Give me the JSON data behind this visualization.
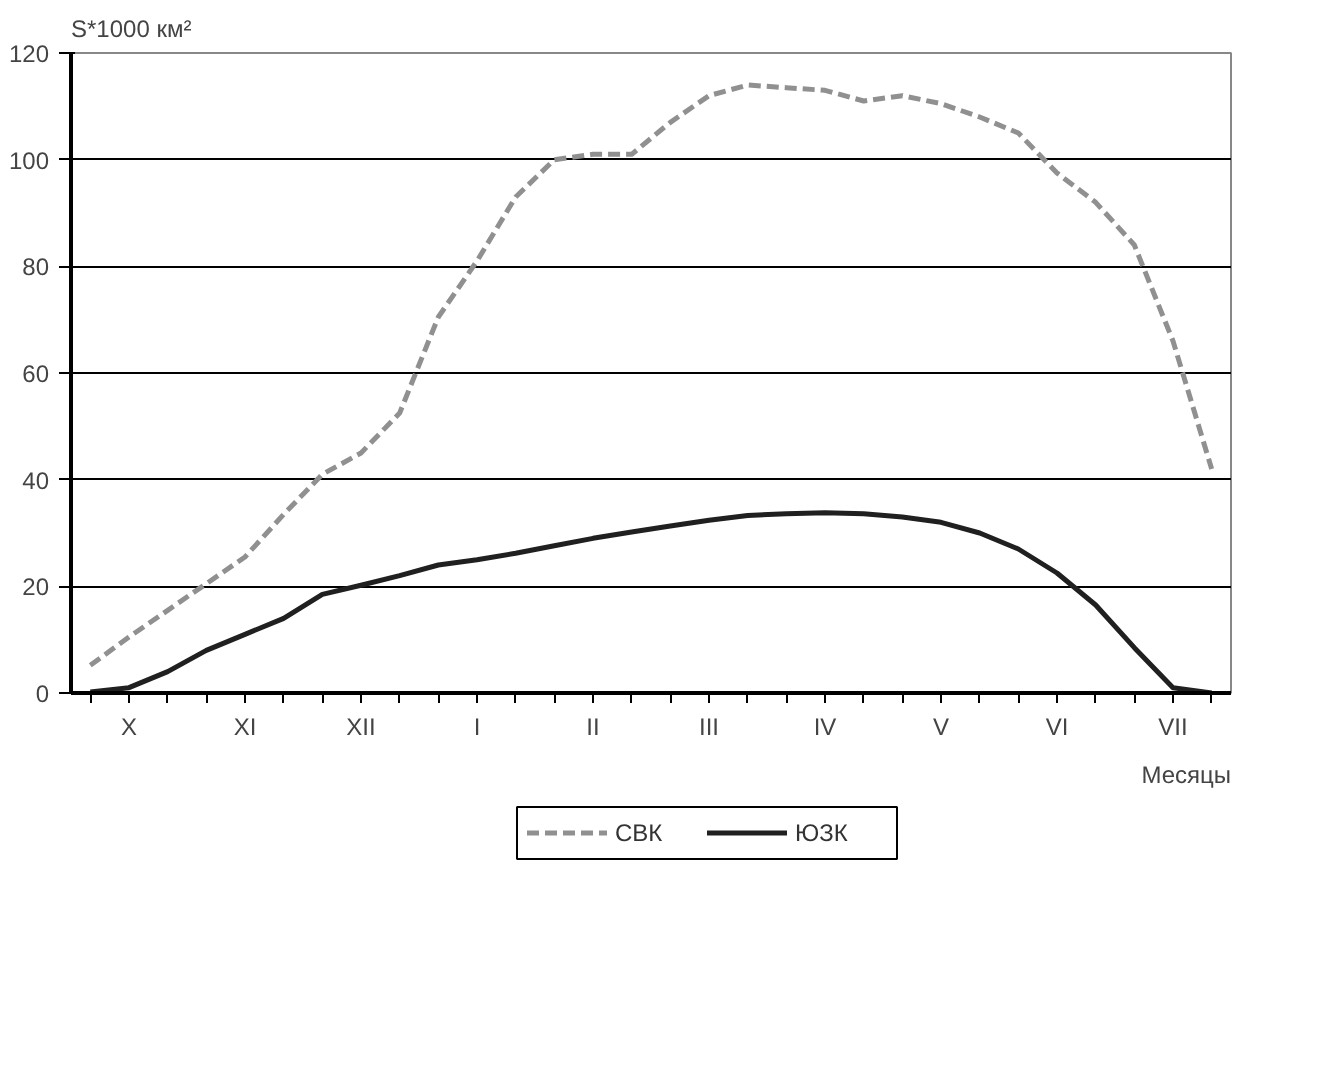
{
  "chart_data": {
    "type": "line",
    "ylabel": "S*1000 км²",
    "xlabel": "Месяцы",
    "ylim": [
      0,
      120
    ],
    "yticks": [
      0,
      20,
      40,
      60,
      80,
      100,
      120
    ],
    "categories": [
      null,
      "X",
      null,
      null,
      "XI",
      null,
      null,
      "XII",
      null,
      null,
      "I",
      null,
      null,
      "II",
      null,
      null,
      "III",
      null,
      null,
      "IV",
      null,
      null,
      "V",
      null,
      null,
      "VI",
      null,
      null,
      "VII",
      null
    ],
    "grid": "y",
    "legend": "bottom",
    "series": [
      {
        "name": "СВК",
        "color": "#909090",
        "line_style": "dashed",
        "values": [
          5.2,
          10.5,
          15.5,
          20.5,
          25.5,
          33.5,
          41,
          45,
          52.5,
          70.5,
          81,
          93,
          100,
          101,
          101,
          107,
          112,
          114,
          113.5,
          113,
          111,
          112,
          110.5,
          108,
          105,
          97.5,
          92,
          84,
          66,
          42
        ]
      },
      {
        "name": "ЮЗК",
        "color": "#202020",
        "line_style": "solid",
        "values": [
          0.2,
          1,
          4,
          8,
          11,
          14,
          18.5,
          20.2,
          22,
          24,
          25,
          26.2,
          27.6,
          29,
          30.2,
          31.3,
          32.4,
          33.3,
          33.6,
          33.8,
          33.6,
          33,
          32,
          30,
          27,
          22.5,
          16.5,
          8.5,
          1,
          0
        ]
      }
    ]
  }
}
